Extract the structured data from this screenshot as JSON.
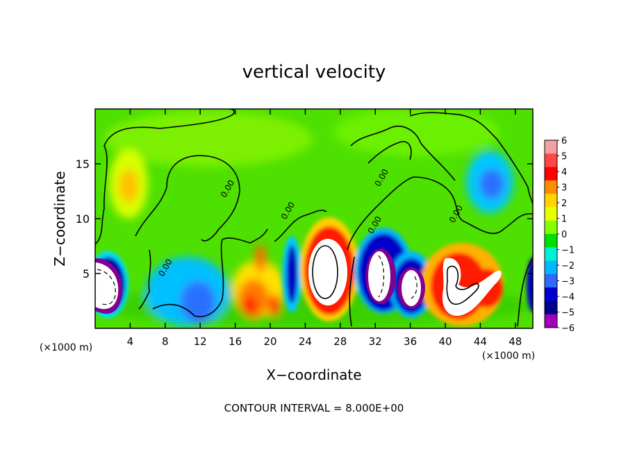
{
  "chart_data": {
    "type": "heatmap",
    "title": "vertical velocity",
    "xlabel": "X−coordinate",
    "ylabel": "Z−coordinate",
    "x_unit_left": "(×1000 m)",
    "x_unit_right": "(×1000 m)",
    "footer": "CONTOUR INTERVAL = 8.000E+00",
    "xlim": [
      0,
      50
    ],
    "ylim": [
      0,
      20
    ],
    "x_ticks": [
      4,
      8,
      12,
      16,
      20,
      24,
      28,
      32,
      36,
      40,
      44,
      48
    ],
    "x_tick_labels": [
      "4",
      "8",
      "12",
      "16",
      "20",
      "24",
      "28",
      "32",
      "36",
      "40",
      "44",
      "48"
    ],
    "y_ticks": [
      5,
      10,
      15
    ],
    "y_tick_labels": [
      "5",
      "10",
      "15"
    ],
    "contour_labels": [
      {
        "text": "0.00",
        "x": 15.4,
        "y": 12.6
      },
      {
        "text": "0.00",
        "x": 22.3,
        "y": 10.6
      },
      {
        "text": "0.00",
        "x": 8.3,
        "y": 5.4
      },
      {
        "text": "0.00",
        "x": 32.2,
        "y": 9.3
      },
      {
        "text": "0.00",
        "x": 33.0,
        "y": 13.6
      },
      {
        "text": "0.00",
        "x": 41.5,
        "y": 10.3
      }
    ],
    "colorbar": {
      "levels": [
        "6",
        "5",
        "4",
        "3",
        "2",
        "1",
        "0",
        "−1",
        "−2",
        "−3",
        "−4",
        "−5",
        "−6"
      ],
      "colors": [
        "#f4a0a0",
        "#ff4545",
        "#ff0000",
        "#ff8c00",
        "#ffd500",
        "#e8ff00",
        "#85ff00",
        "#00e000",
        "#00f0d8",
        "#00b8ff",
        "#3068ff",
        "#0000d0",
        "#000090",
        "#a000b8"
      ]
    },
    "features": [
      {
        "kind": "downdraft",
        "x": 2.0,
        "y": 4.0,
        "w": -6.5
      },
      {
        "kind": "downdraft",
        "x": 11.5,
        "y": 3.5,
        "w": -2.5
      },
      {
        "kind": "updraft",
        "x": 19.0,
        "y": 3.0,
        "w": 4.5
      },
      {
        "kind": "downdraft",
        "x": 22.5,
        "y": 5.5,
        "w": -5.0
      },
      {
        "kind": "updraft",
        "x": 26.5,
        "y": 5.5,
        "w": 7.5
      },
      {
        "kind": "downdraft",
        "x": 33.0,
        "y": 5.0,
        "w": -6.5
      },
      {
        "kind": "downdraft",
        "x": 36.0,
        "y": 3.5,
        "w": -5.5
      },
      {
        "kind": "updraft",
        "x": 41.5,
        "y": 4.0,
        "w": 7.0
      },
      {
        "kind": "updraft",
        "x": 45.5,
        "y": 4.5,
        "w": 6.5
      },
      {
        "kind": "updraft",
        "x": 4.5,
        "y": 12.5,
        "w": 2.5
      },
      {
        "kind": "downdraft",
        "x": 45.0,
        "y": 13.0,
        "w": -3.0
      },
      {
        "kind": "downdraft",
        "x": 49.5,
        "y": 5.0,
        "w": -6.0
      }
    ]
  }
}
